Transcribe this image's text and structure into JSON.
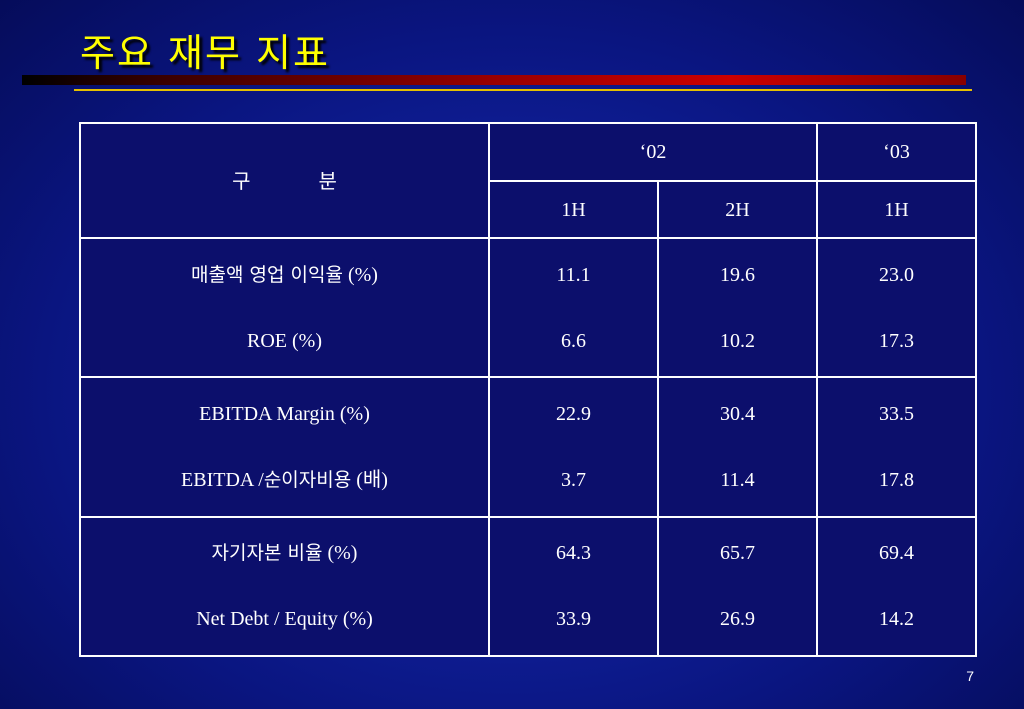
{
  "slide": {
    "title": "주요  재무  지표",
    "page_number": "7"
  },
  "table": {
    "header": {
      "category_part1": "구",
      "category_part2": "분",
      "year_02": "‘02",
      "year_03": "‘03",
      "h1_02": "1H",
      "h2_02": "2H",
      "h1_03": "1H"
    },
    "groups": [
      {
        "rows": [
          {
            "label_ko": "매출액 영업 이익율",
            "label_suffix": " (%)",
            "v1": "11.1",
            "v2": "19.6",
            "v3": "23.0"
          },
          {
            "label_ko": "",
            "label_suffix": "ROE (%)",
            "v1": "6.6",
            "v2": "10.2",
            "v3": "17.3"
          }
        ]
      },
      {
        "rows": [
          {
            "label_ko": "",
            "label_suffix": "EBITDA Margin (%)",
            "v1": "22.9",
            "v2": "30.4",
            "v3": "33.5"
          },
          {
            "label_prefix": "EBITDA /",
            "label_ko": "순이자비용",
            "label_suffix": " (배)",
            "v1": "3.7",
            "v2": "11.4",
            "v3": "17.8"
          }
        ]
      },
      {
        "rows": [
          {
            "label_ko": "자기자본 비율",
            "label_suffix": " (%)",
            "v1": "64.3",
            "v2": "65.7",
            "v3": "69.4"
          },
          {
            "label_ko": "",
            "label_suffix": "Net Debt / Equity (%)",
            "v1": "33.9",
            "v2": "26.9",
            "v3": "14.2"
          }
        ]
      }
    ]
  }
}
